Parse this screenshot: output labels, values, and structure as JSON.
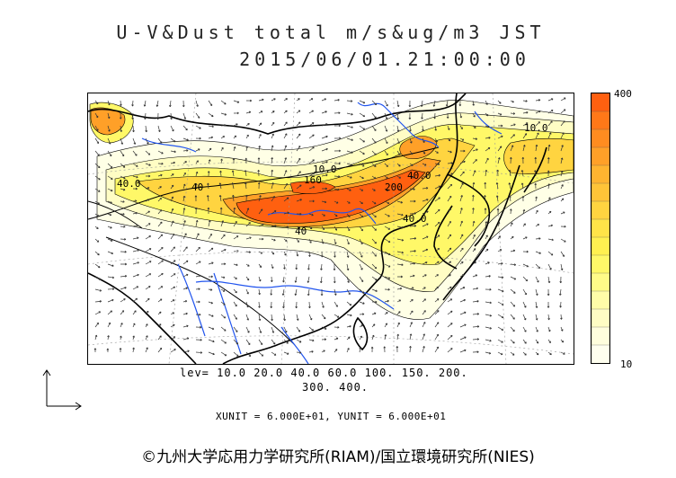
{
  "header": {
    "title": "U-V&Dust total m/s&ug/m3 JST",
    "timestamp": "2015/06/01.21:00:00"
  },
  "colorbar": {
    "max_label": "400",
    "min_label": "10",
    "colors": [
      "#ff6010",
      "#ff7818",
      "#ff8c20",
      "#ffa028",
      "#ffb430",
      "#ffc438",
      "#ffd440",
      "#ffe448",
      "#fff050",
      "#fff868",
      "#fffb88",
      "#fffca8",
      "#fffdc4",
      "#fffedd",
      "#ffffef"
    ]
  },
  "levels": {
    "line1": "lev= 10.0 20.0 40.0 60.0 100. 150. 200.",
    "line2": "300. 400."
  },
  "units": {
    "text": "XUNIT = 6.000E+01, YUNIT = 6.000E+01"
  },
  "contour_labels": [
    "40.0",
    "40",
    "160",
    "10.0",
    "40.0",
    "200",
    "40",
    "40.0",
    "10.0"
  ],
  "copyright": "©九州大学応用力学研究所(RIAM)/国立環境研究所(NIES)",
  "colors": {
    "coast": "#000000",
    "river": "#2255ee",
    "grid": "#888888"
  }
}
